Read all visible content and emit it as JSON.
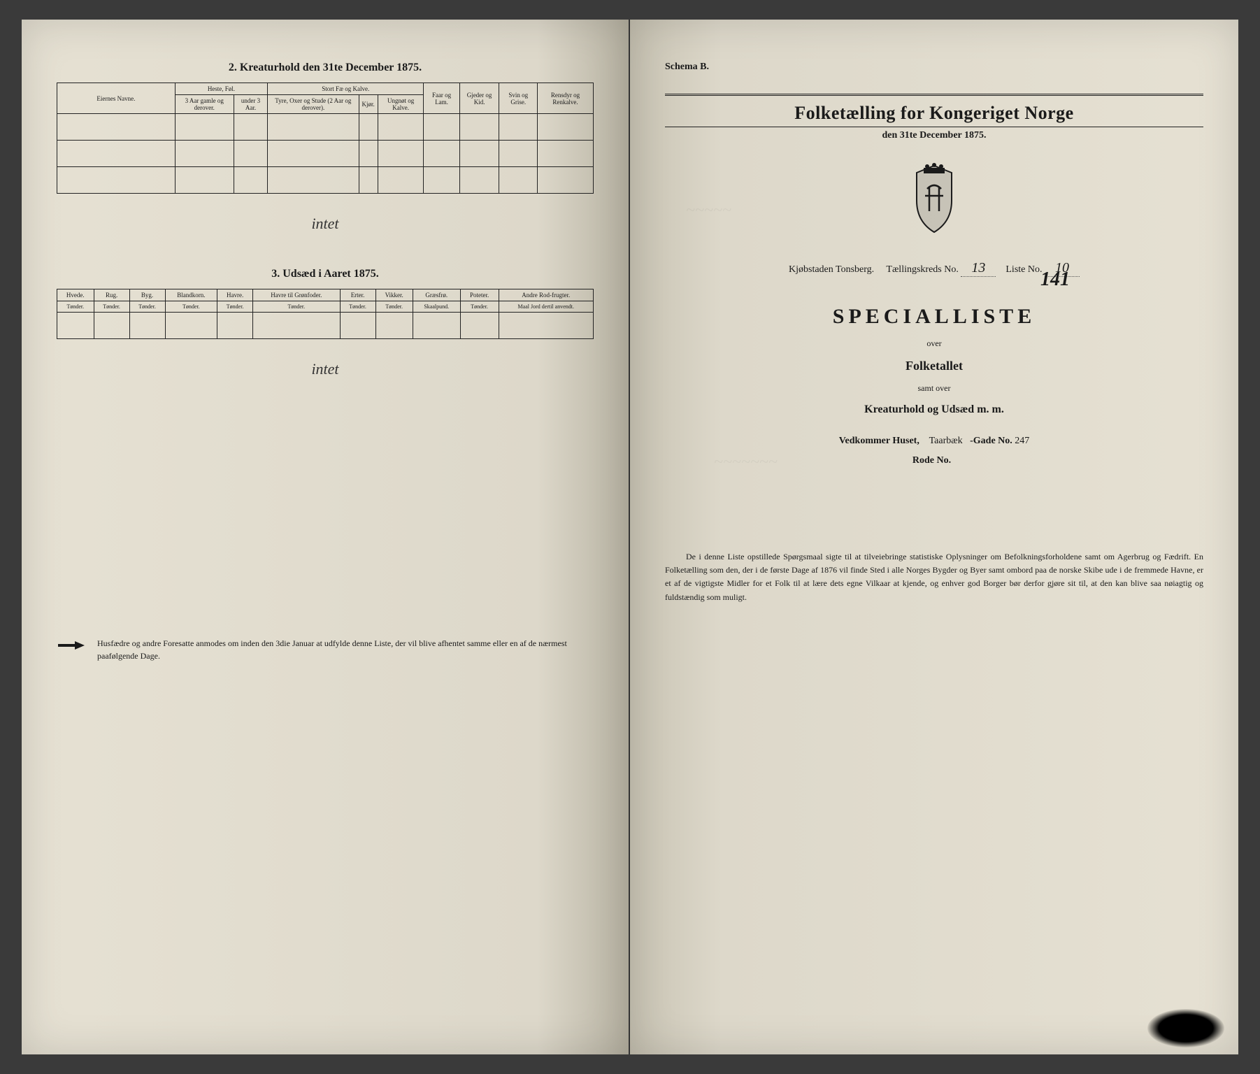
{
  "left": {
    "section2_title": "2. Kreaturhold den 31te December 1875.",
    "table2": {
      "owner_label": "Eiernes Navne.",
      "group_heste": "Heste, Føl.",
      "group_stort": "Stort Fæ og Kalve.",
      "group_faar": "Faar og Lam.",
      "group_gjeder": "Gjeder og Kid.",
      "group_svin": "Svin og Grise.",
      "group_rensdyr": "Rensdyr og Renkalve.",
      "heste_a": "3 Aar gamle og derover.",
      "heste_b": "under 3 Aar.",
      "stort_a": "Tyre, Oxer og Stude (2 Aar og derover).",
      "stort_b": "Kjør.",
      "stort_c": "Ungnøt og Kalve."
    },
    "intet1": "intet",
    "section3_title": "3. Udsæd i Aaret 1875.",
    "table3": {
      "cols": [
        {
          "h": "Hvede.",
          "u": "Tønder."
        },
        {
          "h": "Rug.",
          "u": "Tønder."
        },
        {
          "h": "Byg.",
          "u": "Tønder."
        },
        {
          "h": "Blandkorn.",
          "u": "Tønder."
        },
        {
          "h": "Havre.",
          "u": "Tønder."
        },
        {
          "h": "Havre til Grønfoder.",
          "u": "Tønder."
        },
        {
          "h": "Erter.",
          "u": "Tønder."
        },
        {
          "h": "Vikker.",
          "u": "Tønder."
        },
        {
          "h": "Græsfrø.",
          "u": "Skaalpund."
        },
        {
          "h": "Poteter.",
          "u": "Tønder."
        },
        {
          "h": "Andre Rod-frugter.",
          "u": "Maal Jord dertil anvendt."
        }
      ]
    },
    "intet2": "intet",
    "footer": "Husfædre og andre Foresatte anmodes om inden den 3die Januar at udfylde denne Liste, der vil blive afhentet samme eller en af de nærmest paafølgende Dage."
  },
  "right": {
    "schema": "Schema B.",
    "main_title": "Folketælling for Kongeriget Norge",
    "sub_date": "den 31te December 1875.",
    "city_label": "Kjøbstaden Tonsberg.",
    "tkreds_label": "Tællingskreds No.",
    "tkreds_val": "13",
    "liste_label": "Liste No.",
    "liste_val": "10",
    "liste_val2": "141",
    "special": "Specialliste",
    "over": "over",
    "folketallet": "Folketallet",
    "samt": "samt over",
    "kreatur": "Kreaturhold og Udsæd m. m.",
    "vedk_label": "Vedkommer Huset,",
    "vedk_val": "Taarbæk",
    "gade_label": "-Gade No.",
    "gade_val": "247",
    "rode_label": "Rode No.",
    "paragraph": "De i denne Liste opstillede Spørgsmaal sigte til at tilveiebringe statistiske Oplysninger om Befolkningsforholdene samt om Agerbrug og Fædrift. En Folketælling som den, der i de første Dage af 1876 vil finde Sted i alle Norges Bygder og Byer samt ombord paa de norske Skibe ude i de fremmede Havne, er et af de vigtigste Midler for et Folk til at lære dets egne Vilkaar at kjende, og enhver god Borger bør derfor gjøre sit til, at den kan blive saa nøiagtig og fuldstændig som muligt."
  },
  "colors": {
    "ink": "#1a1a1a",
    "paper": "#e0dbcd"
  }
}
